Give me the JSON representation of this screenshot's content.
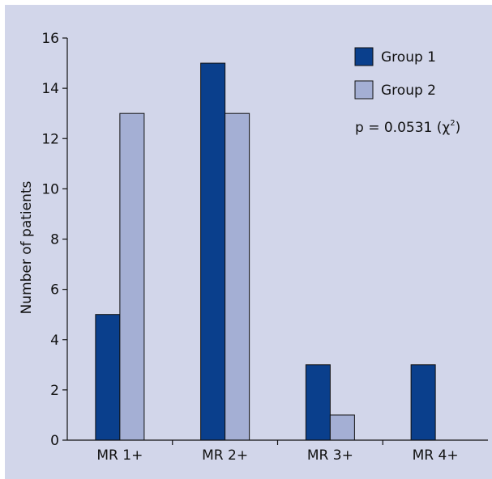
{
  "chart_data": {
    "type": "bar",
    "categories": [
      "MR 1+",
      "MR 2+",
      "MR 3+",
      "MR 4+"
    ],
    "series": [
      {
        "name": "Group 1",
        "values": [
          5,
          15,
          3,
          3
        ],
        "color": "#0a3f8c"
      },
      {
        "name": "Group 2",
        "values": [
          13,
          13,
          1,
          0
        ],
        "color": "#a4afd4"
      }
    ],
    "ylabel": "Number of patients",
    "xlabel": "",
    "ylim": [
      0,
      16
    ],
    "yticks": [
      0,
      2,
      4,
      6,
      8,
      10,
      12,
      14,
      16
    ],
    "legend_position": "top-right",
    "grid": false,
    "annotation": {
      "text": "p = 0.0531 (χ",
      "superscript": "2",
      "suffix": ")"
    }
  }
}
